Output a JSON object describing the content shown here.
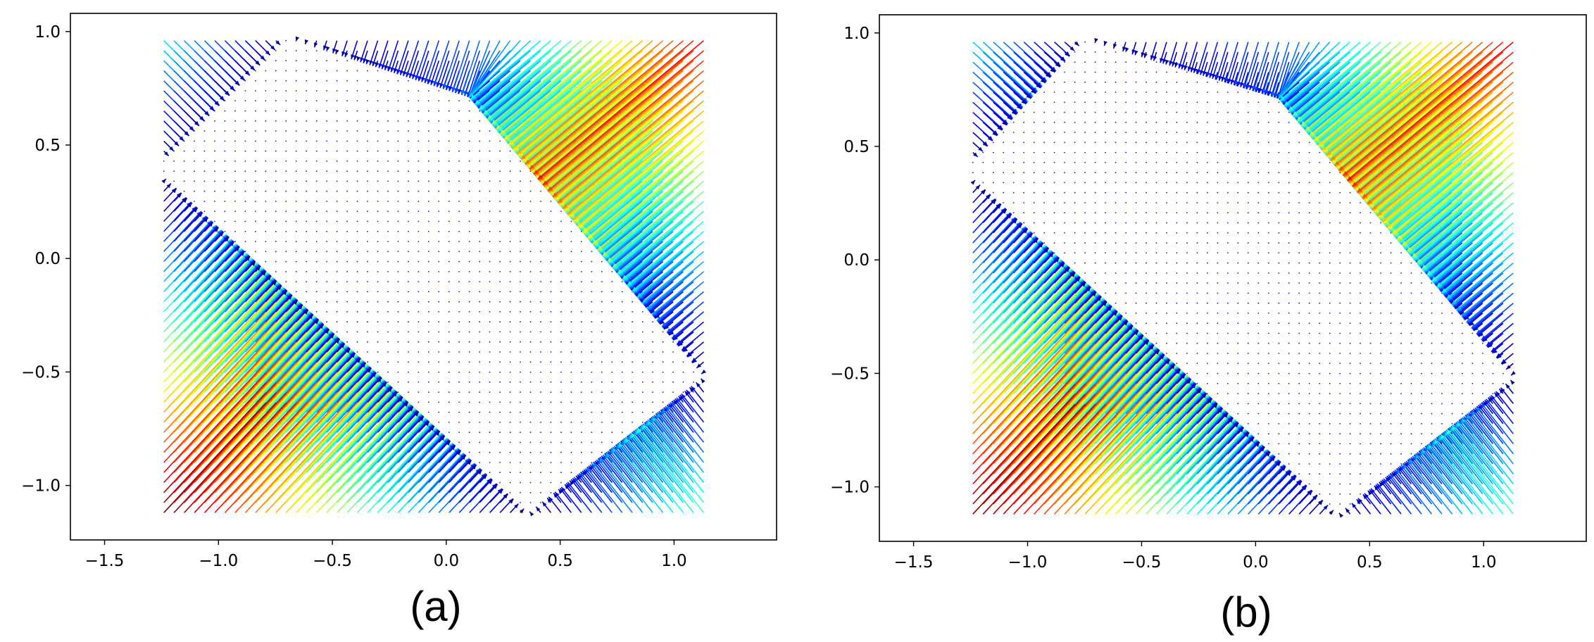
{
  "chart_data": [
    {
      "type": "quiver",
      "panel_label": "(a)",
      "xlim": [
        -1.65,
        1.45
      ],
      "ylim": [
        -1.24,
        1.08
      ],
      "xticks": [
        -1.5,
        -1.0,
        -0.5,
        0.0,
        0.5,
        1.0
      ],
      "xtick_labels": [
        "−1.5",
        "−1.0",
        "−0.5",
        "0.0",
        "0.5",
        "1.0"
      ],
      "yticks": [
        1.0,
        0.5,
        0.0,
        -0.5,
        -1.0
      ],
      "ytick_labels": [
        "1.0",
        "0.5",
        "0.0",
        "−0.5",
        "−1.0"
      ],
      "grid": false,
      "colormap": "jet",
      "field_extent": {
        "x": [
          -1.24,
          1.13
        ],
        "y": [
          -1.12,
          0.96
        ]
      },
      "feasible_polygon": [
        [
          -1.24,
          0.43
        ],
        [
          -0.7,
          0.97
        ],
        [
          0.1,
          0.71
        ],
        [
          1.13,
          -0.52
        ],
        [
          0.36,
          -1.12
        ],
        [
          -1.24,
          0.36
        ]
      ],
      "max_norm_regions": [
        "lower-left corner (−1.1, −0.95)",
        "upper-right band near (0.6, 0.2)"
      ]
    },
    {
      "type": "quiver",
      "panel_label": "(b)",
      "xlim": [
        -1.65,
        1.45
      ],
      "ylim": [
        -1.24,
        1.08
      ],
      "xticks": [
        -1.5,
        -1.0,
        -0.5,
        0.0,
        0.5,
        1.0
      ],
      "xtick_labels": [
        "−1.5",
        "−1.0",
        "−0.5",
        "0.0",
        "0.5",
        "1.0"
      ],
      "yticks": [
        1.0,
        0.5,
        0.0,
        -0.5,
        -1.0
      ],
      "ytick_labels": [
        "1.0",
        "0.5",
        "0.0",
        "−0.5",
        "−1.0"
      ],
      "grid": false,
      "colormap": "jet",
      "field_extent": {
        "x": [
          -1.24,
          1.13
        ],
        "y": [
          -1.12,
          0.96
        ]
      },
      "feasible_polygon": [
        [
          -1.24,
          0.43
        ],
        [
          -0.75,
          0.97
        ],
        [
          0.1,
          0.71
        ],
        [
          1.13,
          -0.52
        ],
        [
          0.36,
          -1.12
        ],
        [
          -1.24,
          0.36
        ]
      ],
      "max_norm_regions": [
        "lower-left corner (−1.0, −0.9)",
        "upper-right fan near (0.35, 0.35)"
      ]
    }
  ]
}
